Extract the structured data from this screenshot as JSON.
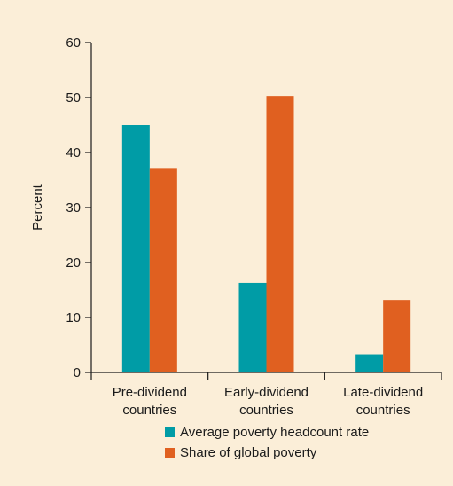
{
  "chart_data": {
    "type": "bar",
    "categories": [
      "Pre-dividend\ncountries",
      "Early-dividend\ncountries",
      "Late-dividend\ncountries"
    ],
    "series": [
      {
        "name": "Average poverty headcount rate",
        "color": "#009ca6",
        "values": [
          45,
          16.3,
          3.3
        ]
      },
      {
        "name": "Share of global poverty",
        "color": "#e06020",
        "values": [
          37.2,
          50.3,
          13.2
        ]
      }
    ],
    "title": "",
    "xlabel": "",
    "ylabel": "Percent",
    "ylim": [
      0,
      60
    ],
    "yticks": [
      0,
      10,
      20,
      30,
      40,
      50,
      60
    ],
    "grid": false,
    "legend_position": "bottom-center"
  }
}
